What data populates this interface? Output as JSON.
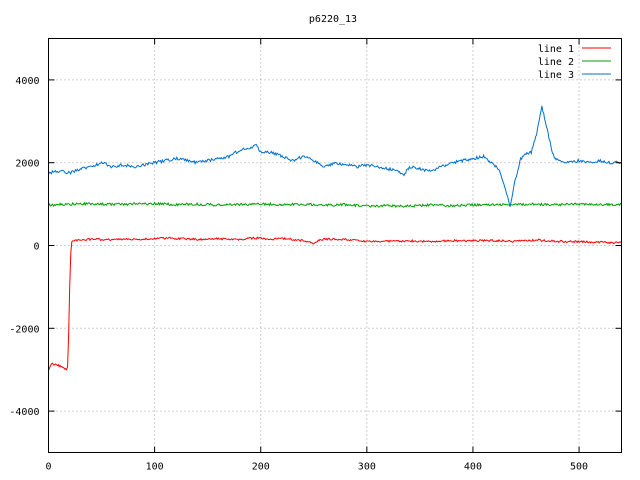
{
  "chart_data": {
    "type": "line",
    "title": "p6220_13",
    "xlabel": "",
    "ylabel": "",
    "xlim": [
      0,
      540
    ],
    "ylim": [
      -5000,
      5000
    ],
    "x_ticks": [
      "0",
      "100",
      "200",
      "300",
      "400",
      "500"
    ],
    "y_ticks": [
      "-4000",
      "-2000",
      "0",
      "2000",
      "4000"
    ],
    "grid": true,
    "legend_position": "top-right",
    "series": [
      {
        "name": "line 1",
        "color": "#ff0000",
        "x": [
          0,
          3,
          10,
          17,
          18,
          19,
          20,
          21,
          22,
          25,
          40,
          60,
          80,
          100,
          110,
          120,
          140,
          160,
          180,
          195,
          210,
          220,
          240,
          250,
          255,
          260,
          280,
          290,
          300,
          320,
          340,
          360,
          380,
          400,
          420,
          440,
          460,
          480,
          500,
          520,
          540
        ],
        "y": [
          -3000,
          -2850,
          -2900,
          -3000,
          -2950,
          -2100,
          -1000,
          -200,
          80,
          130,
          150,
          140,
          150,
          160,
          180,
          170,
          150,
          160,
          150,
          180,
          150,
          170,
          120,
          60,
          140,
          150,
          150,
          120,
          100,
          110,
          110,
          100,
          120,
          110,
          120,
          100,
          130,
          100,
          90,
          80,
          60
        ]
      },
      {
        "name": "line 2",
        "color": "#00a000",
        "x": [
          0,
          20,
          40,
          60,
          80,
          100,
          120,
          140,
          160,
          180,
          200,
          220,
          240,
          260,
          280,
          300,
          320,
          340,
          360,
          380,
          400,
          420,
          440,
          460,
          480,
          500,
          520,
          540
        ],
        "y": [
          980,
          1000,
          1010,
          990,
          1000,
          1010,
          990,
          1000,
          980,
          990,
          1000,
          990,
          1000,
          970,
          990,
          950,
          960,
          950,
          980,
          960,
          980,
          990,
          990,
          1000,
          990,
          1000,
          990,
          1000
        ]
      },
      {
        "name": "line 3",
        "color": "#0070d0",
        "x": [
          0,
          10,
          20,
          30,
          40,
          50,
          60,
          70,
          80,
          90,
          100,
          110,
          120,
          130,
          140,
          150,
          160,
          170,
          180,
          190,
          195,
          200,
          210,
          220,
          230,
          240,
          250,
          260,
          270,
          280,
          290,
          300,
          310,
          320,
          330,
          335,
          340,
          350,
          360,
          370,
          380,
          390,
          400,
          410,
          420,
          425,
          430,
          435,
          440,
          445,
          450,
          455,
          460,
          465,
          470,
          475,
          480,
          490,
          500,
          510,
          520,
          530,
          540
        ],
        "y": [
          1750,
          1800,
          1750,
          1850,
          1900,
          2000,
          1900,
          1950,
          1900,
          1950,
          2000,
          2050,
          2100,
          2050,
          2000,
          2050,
          2100,
          2150,
          2300,
          2350,
          2450,
          2250,
          2250,
          2150,
          2050,
          2150,
          2050,
          1900,
          2000,
          1950,
          1900,
          1950,
          1900,
          1850,
          1800,
          1700,
          1900,
          1850,
          1800,
          1900,
          2000,
          2050,
          2100,
          2150,
          1950,
          1800,
          1400,
          950,
          1600,
          2100,
          2200,
          2250,
          2700,
          3350,
          2800,
          2200,
          2050,
          2000,
          2050,
          2000,
          2050,
          2000,
          2000
        ]
      }
    ]
  }
}
